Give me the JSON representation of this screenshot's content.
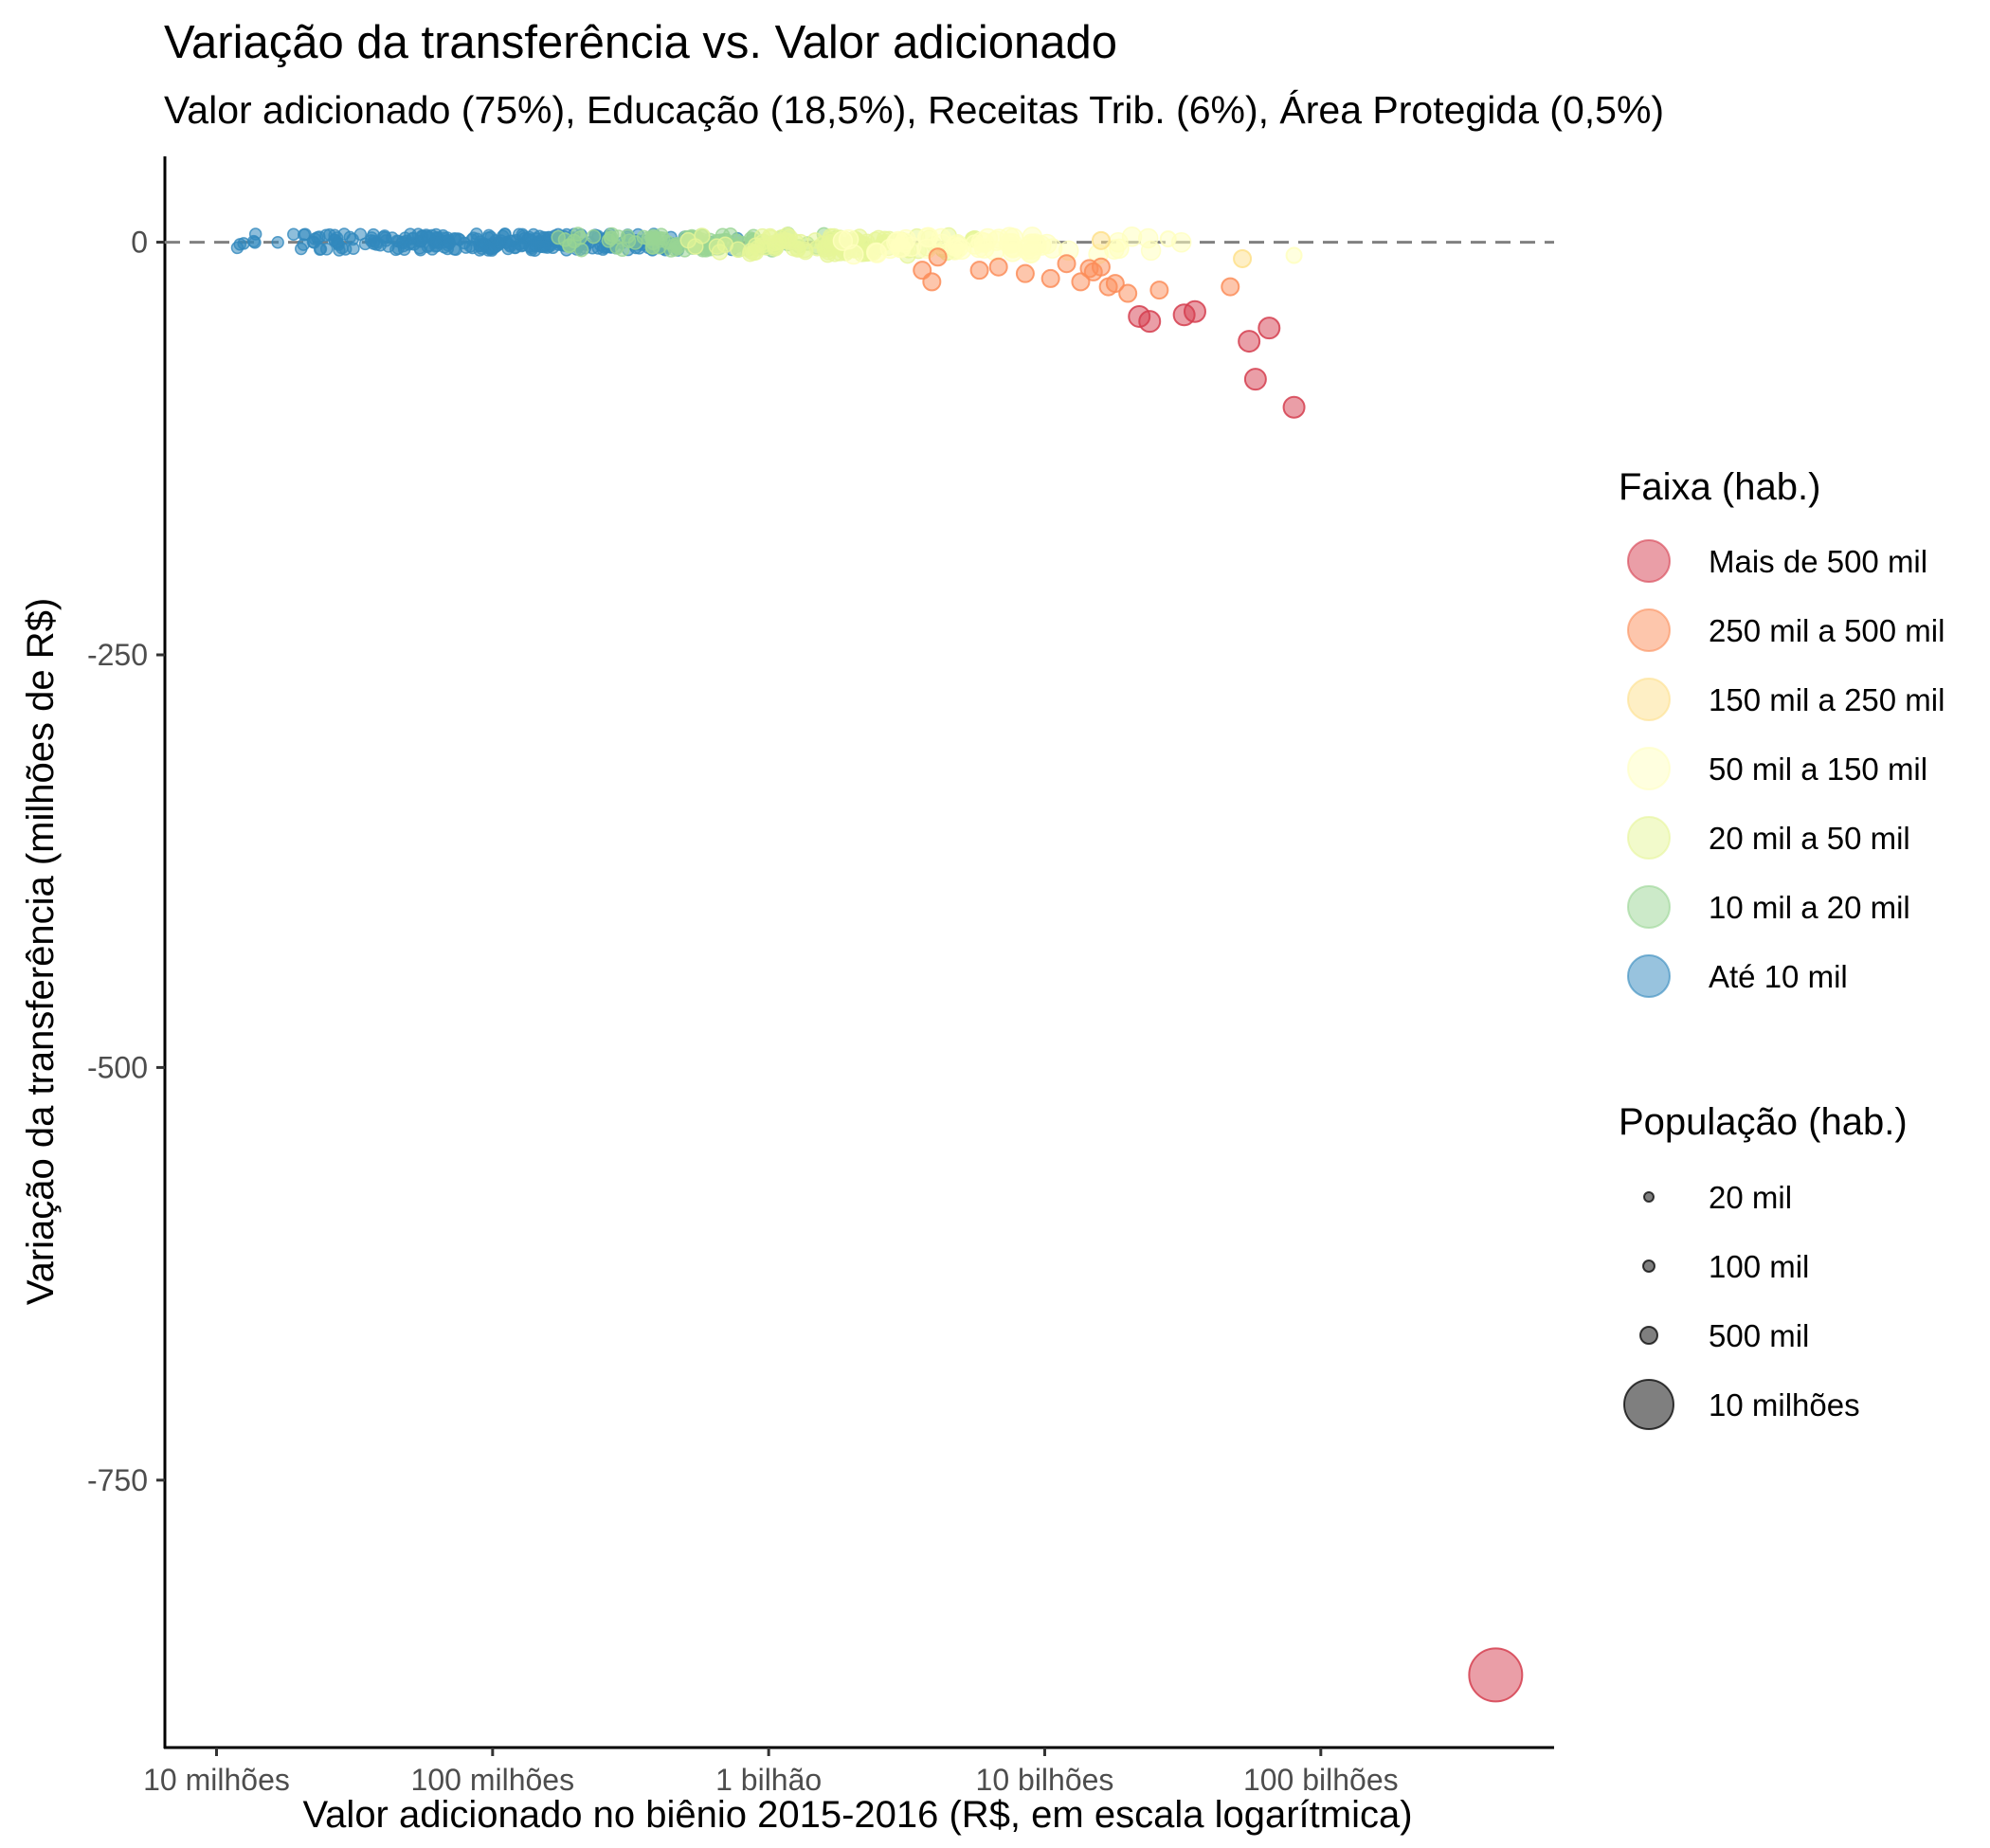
{
  "chart_data": {
    "type": "scatter",
    "title": "Variação da transferência vs. Valor adicionado",
    "subtitle": "Valor adicionado (75%), Educação (18,5%), Receitas Trib. (6%), Área Protegida (0,5%)",
    "xlabel": "Valor adicionado no biênio 2015-2016 (R$, em escala logarítmica)",
    "ylabel": "Variação da transferência (milhões de R$)",
    "x_scale": "log10",
    "xlim": [
      6500000,
      700000000000
    ],
    "ylim": [
      -912,
      52
    ],
    "x_ticks": [
      {
        "value": 10000000,
        "label": "10 milhões"
      },
      {
        "value": 100000000,
        "label": "100 milhões"
      },
      {
        "value": 1000000000,
        "label": "1 bilhão"
      },
      {
        "value": 10000000000,
        "label": "10 bilhões"
      },
      {
        "value": 100000000000,
        "label": "100 bilhões"
      }
    ],
    "y_ticks": [
      {
        "value": 0,
        "label": "0"
      },
      {
        "value": -250,
        "label": "-250"
      },
      {
        "value": -500,
        "label": "-500"
      },
      {
        "value": -750,
        "label": "-750"
      }
    ],
    "reference_line": {
      "y": 0,
      "style": "dashed",
      "color": "#808080"
    },
    "grid": false,
    "legend_position": "right",
    "color_legend": {
      "title": "Faixa (hab.)",
      "entries": [
        {
          "label": "Mais de 500 mil",
          "color": "#d53e4f"
        },
        {
          "label": "250 mil a 500 mil",
          "color": "#fc8d59"
        },
        {
          "label": "150 mil a 250 mil",
          "color": "#fee08b"
        },
        {
          "label": "50 mil a 150 mil",
          "color": "#ffffbf"
        },
        {
          "label": "20 mil a 50 mil",
          "color": "#e6f598"
        },
        {
          "label": "10 mil a 20 mil",
          "color": "#99d594"
        },
        {
          "label": "Até 10 mil",
          "color": "#3288bd"
        }
      ]
    },
    "size_legend": {
      "title": "População (hab.)",
      "color": "#000000",
      "entries": [
        {
          "label": "20 mil",
          "value": 20000
        },
        {
          "label": "100 mil",
          "value": 100000
        },
        {
          "label": "500 mil",
          "value": 500000
        },
        {
          "label": "10 milhões",
          "value": 10000000
        }
      ]
    },
    "highlighted_points": [
      {
        "x": 430000000000,
        "y": -868,
        "group": "Mais de 500 mil"
      },
      {
        "x": 80000000000,
        "y": -100,
        "group": "Mais de 500 mil"
      },
      {
        "x": 58000000000,
        "y": -83,
        "group": "Mais de 500 mil"
      },
      {
        "x": 55000000000,
        "y": -60,
        "group": "Mais de 500 mil"
      },
      {
        "x": 65000000000,
        "y": -52,
        "group": "Mais de 500 mil"
      },
      {
        "x": 35000000000,
        "y": -42,
        "group": "Mais de 500 mil"
      },
      {
        "x": 32000000000,
        "y": -44,
        "group": "Mais de 500 mil"
      },
      {
        "x": 24000000000,
        "y": -48,
        "group": "Mais de 500 mil"
      },
      {
        "x": 22000000000,
        "y": -45,
        "group": "Mais de 500 mil"
      },
      {
        "x": 3600000000,
        "y": -17,
        "group": "250 mil a 500 mil"
      },
      {
        "x": 3900000000,
        "y": -24,
        "group": "250 mil a 500 mil"
      },
      {
        "x": 4100000000,
        "y": -9,
        "group": "250 mil a 500 mil"
      },
      {
        "x": 5800000000,
        "y": -17,
        "group": "250 mil a 500 mil"
      },
      {
        "x": 6800000000,
        "y": -15,
        "group": "250 mil a 500 mil"
      },
      {
        "x": 8500000000,
        "y": -19,
        "group": "250 mil a 500 mil"
      },
      {
        "x": 10500000000,
        "y": -22,
        "group": "250 mil a 500 mil"
      },
      {
        "x": 12000000000,
        "y": -13,
        "group": "250 mil a 500 mil"
      },
      {
        "x": 13500000000,
        "y": -24,
        "group": "250 mil a 500 mil"
      },
      {
        "x": 14500000000,
        "y": -16,
        "group": "250 mil a 500 mil"
      },
      {
        "x": 15000000000,
        "y": -18,
        "group": "250 mil a 500 mil"
      },
      {
        "x": 16000000000,
        "y": -15,
        "group": "250 mil a 500 mil"
      },
      {
        "x": 17000000000,
        "y": -27,
        "group": "250 mil a 500 mil"
      },
      {
        "x": 18000000000,
        "y": -25,
        "group": "250 mil a 500 mil"
      },
      {
        "x": 20000000000,
        "y": -31,
        "group": "250 mil a 500 mil"
      },
      {
        "x": 26000000000,
        "y": -29,
        "group": "250 mil a 500 mil"
      },
      {
        "x": 47000000000,
        "y": -27,
        "group": "250 mil a 500 mil"
      },
      {
        "x": 52000000000,
        "y": -10,
        "group": "150 mil a 250 mil"
      },
      {
        "x": 80000000000,
        "y": -8,
        "group": "50 mil a 150 mil"
      },
      {
        "x": 28000000000,
        "y": 2,
        "group": "50 mil a 150 mil"
      },
      {
        "x": 16000000000,
        "y": 1,
        "group": "150 mil a 250 mil"
      }
    ]
  }
}
